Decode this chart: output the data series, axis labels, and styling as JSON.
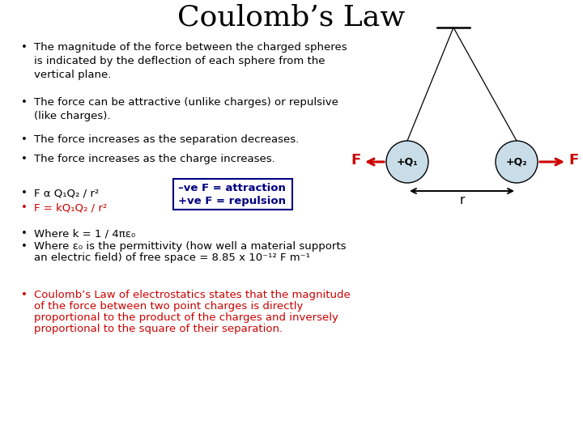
{
  "title": "Coulomb’s Law",
  "title_fontsize": 26,
  "title_font": "serif",
  "bg_color": "#ffffff",
  "bullet_color": "#000000",
  "red_color": "#cc0000",
  "blue_color": "#000080",
  "sphere_fill": "#c8dde8",
  "sphere_edge": "#000000",
  "bullet1": "The magnitude of the force between the charged spheres\nis indicated by the deflection of each sphere from the\nvertical plane.",
  "bullet2": "The force can be attractive (unlike charges) or repulsive\n(like charges).",
  "bullet3": "The force increases as the separation decreases.",
  "bullet4": "The force increases as the charge increases.",
  "bullet5a": "F α Q₁Q₂ / r²",
  "bullet5b": "F = kQ₁Q₂ / r²",
  "box_line1": "–ve F = attraction",
  "box_line2": "+ve F = repulsion",
  "bullet6a": "Where k = 1 / 4πε₀",
  "bullet6b_1": "Where ε₀ is the permittivity (how well a material supports",
  "bullet6b_2": "an electric field) of free space = 8.85 x 10⁻¹² F m⁻¹",
  "bullet7_1": "Coulomb’s Law of electrostatics states that the magnitude",
  "bullet7_2": "of the force between two point charges is directly",
  "bullet7_3": "proportional to the product of the charges and inversely",
  "bullet7_4": "proportional to the square of their separation.",
  "font_size_body": 9.5,
  "font_size_box": 9.5
}
